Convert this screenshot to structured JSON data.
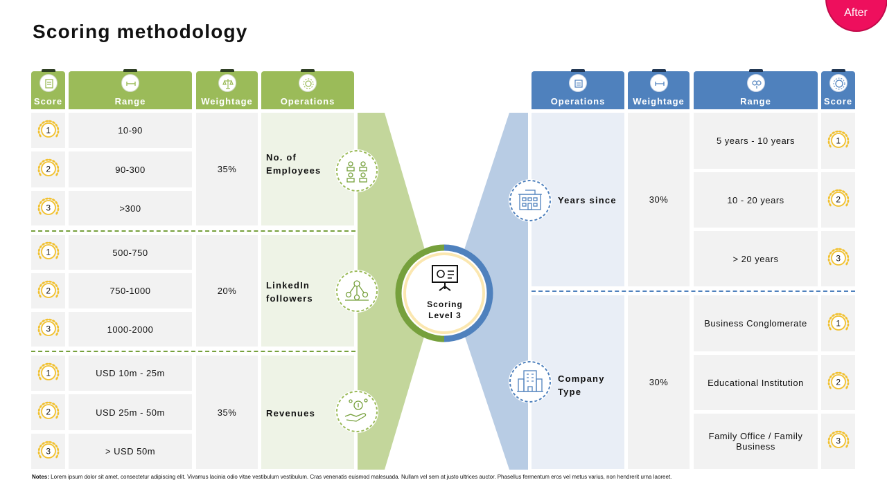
{
  "title": "Scoring methodology",
  "badge": "After",
  "left_headers": {
    "score": "Score",
    "range": "Range",
    "weightage": "Weightage",
    "operations": "Operations"
  },
  "right_headers": {
    "operations": "Operations",
    "weightage": "Weightage",
    "range": "Range",
    "score": "Score"
  },
  "left_groups": [
    {
      "operation": "No. of Employees",
      "weightage": "35%",
      "icon": "employees-icon",
      "rows": [
        {
          "score": "1",
          "range": "10-90"
        },
        {
          "score": "2",
          "range": "90-300"
        },
        {
          "score": "3",
          "range": ">300"
        }
      ]
    },
    {
      "operation": "LinkedIn followers",
      "weightage": "20%",
      "icon": "network-icon",
      "rows": [
        {
          "score": "1",
          "range": "500-750"
        },
        {
          "score": "2",
          "range": "750-1000"
        },
        {
          "score": "3",
          "range": "1000-2000"
        }
      ]
    },
    {
      "operation": "Revenues",
      "weightage": "35%",
      "icon": "money-hand-icon",
      "rows": [
        {
          "score": "1",
          "range": "USD 10m - 25m"
        },
        {
          "score": "2",
          "range": "USD 25m - 50m"
        },
        {
          "score": "3",
          "range": "> USD 50m"
        }
      ]
    }
  ],
  "right_groups": [
    {
      "operation": "Years since",
      "weightage": "30%",
      "icon": "building-icon",
      "rows": [
        {
          "score": "1",
          "range": "5 years - 10 years"
        },
        {
          "score": "2",
          "range": "10 - 20 years"
        },
        {
          "score": "3",
          "range": "> 20 years"
        }
      ]
    },
    {
      "operation": "Company Type",
      "weightage": "30%",
      "icon": "office-building-icon",
      "rows": [
        {
          "score": "1",
          "range": "Business Conglomerate"
        },
        {
          "score": "2",
          "range": "Educational Institution"
        },
        {
          "score": "3",
          "range": "Family Office / Family Business"
        }
      ]
    }
  ],
  "center": {
    "label": "Scoring Level 3",
    "icon": "presentation-icon"
  },
  "notes": {
    "label": "Notes:",
    "text": "Lorem ipsum dolor sit amet, consectetur adipiscing elit. Vivamus lacinia odio vitae vestibulum vestibulum. Cras venenatis euismod malesuada. Nullam vel sem at justo ultrices auctor. Phasellus fermentum eros vel metus varius, non hendrerit urna laoreet."
  },
  "colors": {
    "green": "#9bbb59",
    "blue": "#4f81bd",
    "gold": "#f2c12e",
    "badge": "#ee0f5d"
  }
}
